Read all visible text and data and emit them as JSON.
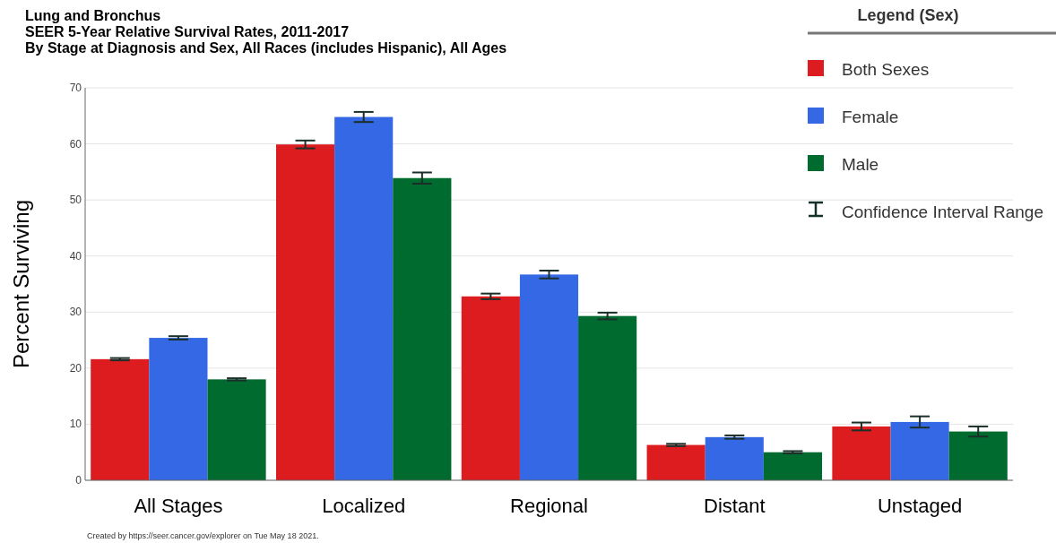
{
  "chart_data": {
    "type": "bar",
    "title": "Lung and Bronchus",
    "subtitle": "SEER 5-Year Relative Survival Rates, 2011-2017\nBy Stage at Diagnosis and Sex, All Races (includes Hispanic), All Ages",
    "ylabel": "Percent Surviving",
    "legend_title": "Legend (Sex)",
    "categories": [
      "All Stages",
      "Localized",
      "Regional",
      "Distant",
      "Unstaged"
    ],
    "series": [
      {
        "name": "Both Sexes",
        "color": "#dc1c1f",
        "values": [
          21.6,
          59.9,
          32.8,
          6.3,
          9.6
        ],
        "errors": [
          0.2,
          0.7,
          0.5,
          0.2,
          0.7
        ]
      },
      {
        "name": "Female",
        "color": "#3468e5",
        "values": [
          25.4,
          64.8,
          36.7,
          7.7,
          10.4
        ],
        "errors": [
          0.3,
          0.9,
          0.7,
          0.3,
          1.0
        ]
      },
      {
        "name": "Male",
        "color": "#006b2e",
        "values": [
          18.0,
          53.9,
          29.3,
          5.0,
          8.7
        ],
        "errors": [
          0.2,
          1.0,
          0.6,
          0.2,
          0.9
        ]
      }
    ],
    "ylim": [
      0,
      70
    ],
    "yticks": [
      0,
      10,
      20,
      30,
      40,
      50,
      60,
      70
    ],
    "grid": "y",
    "legend": "right",
    "annotations": [
      "Confidence Interval Range",
      "Created by https://seer.cancer.gov/explorer on Tue May 18 2021."
    ]
  }
}
